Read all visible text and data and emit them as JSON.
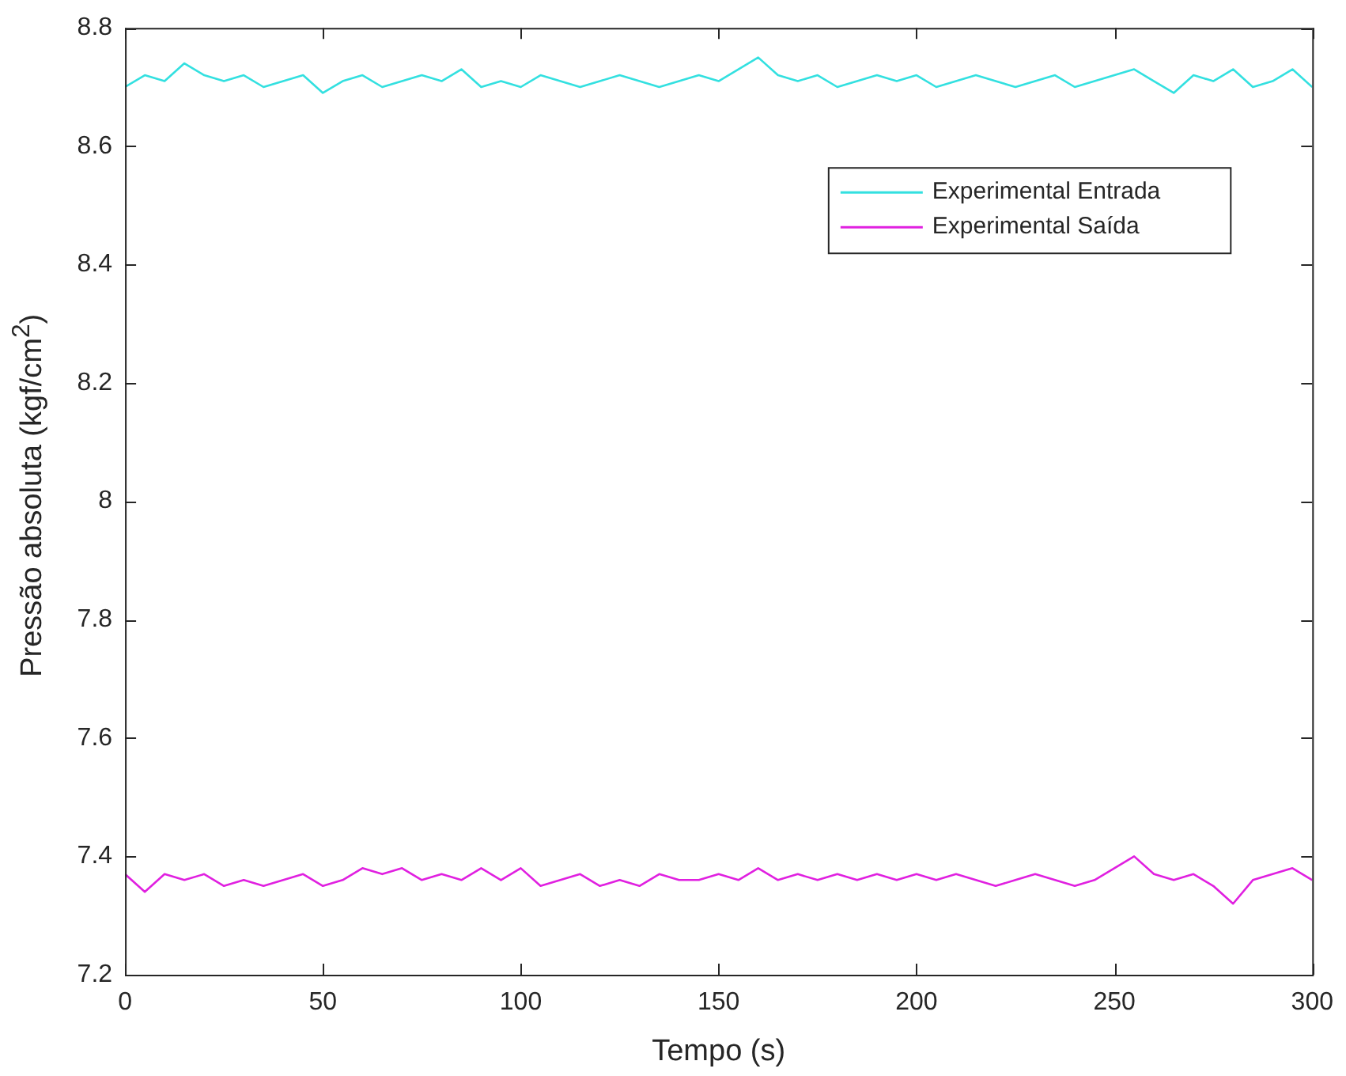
{
  "chart_data": {
    "type": "line",
    "xlabel": "Tempo (s)",
    "ylabel": "Pressão absoluta (kgf/cm$^{2}$)",
    "x": [
      0,
      5,
      10,
      15,
      20,
      25,
      30,
      35,
      40,
      45,
      50,
      55,
      60,
      65,
      70,
      75,
      80,
      85,
      90,
      95,
      100,
      105,
      110,
      115,
      120,
      125,
      130,
      135,
      140,
      145,
      150,
      155,
      160,
      165,
      170,
      175,
      180,
      185,
      190,
      195,
      200,
      205,
      210,
      215,
      220,
      225,
      230,
      235,
      240,
      245,
      250,
      255,
      260,
      265,
      270,
      275,
      280,
      285,
      290,
      295,
      300
    ],
    "series": [
      {
        "name": "Experimental Entrada",
        "color": "#33e0e0",
        "values": [
          8.7,
          8.72,
          8.71,
          8.74,
          8.72,
          8.71,
          8.72,
          8.7,
          8.71,
          8.72,
          8.69,
          8.71,
          8.72,
          8.7,
          8.71,
          8.72,
          8.71,
          8.73,
          8.7,
          8.71,
          8.7,
          8.72,
          8.71,
          8.7,
          8.71,
          8.72,
          8.71,
          8.7,
          8.71,
          8.72,
          8.71,
          8.73,
          8.75,
          8.72,
          8.71,
          8.72,
          8.7,
          8.71,
          8.72,
          8.71,
          8.72,
          8.7,
          8.71,
          8.72,
          8.71,
          8.7,
          8.71,
          8.72,
          8.7,
          8.71,
          8.72,
          8.73,
          8.71,
          8.69,
          8.72,
          8.71,
          8.73,
          8.7,
          8.71,
          8.73,
          8.7
        ]
      },
      {
        "name": "Experimental Saída",
        "color": "#e020e0",
        "values": [
          7.37,
          7.34,
          7.37,
          7.36,
          7.37,
          7.35,
          7.36,
          7.35,
          7.36,
          7.37,
          7.35,
          7.36,
          7.38,
          7.37,
          7.38,
          7.36,
          7.37,
          7.36,
          7.38,
          7.36,
          7.38,
          7.35,
          7.36,
          7.37,
          7.35,
          7.36,
          7.35,
          7.37,
          7.36,
          7.36,
          7.37,
          7.36,
          7.38,
          7.36,
          7.37,
          7.36,
          7.37,
          7.36,
          7.37,
          7.36,
          7.37,
          7.36,
          7.37,
          7.36,
          7.35,
          7.36,
          7.37,
          7.36,
          7.35,
          7.36,
          7.38,
          7.4,
          7.37,
          7.36,
          7.37,
          7.35,
          7.32,
          7.36,
          7.37,
          7.38,
          7.36
        ]
      }
    ],
    "xlim": [
      0,
      300
    ],
    "xticks": [
      0,
      50,
      100,
      150,
      200,
      250,
      300
    ],
    "ylim": [
      7.2,
      8.8
    ],
    "yticks": [
      7.2,
      7.4,
      7.6,
      7.8,
      8,
      8.2,
      8.4,
      8.6,
      8.8
    ],
    "grid": false,
    "legend": "top right",
    "marker": "none",
    "line_style": "solid"
  }
}
